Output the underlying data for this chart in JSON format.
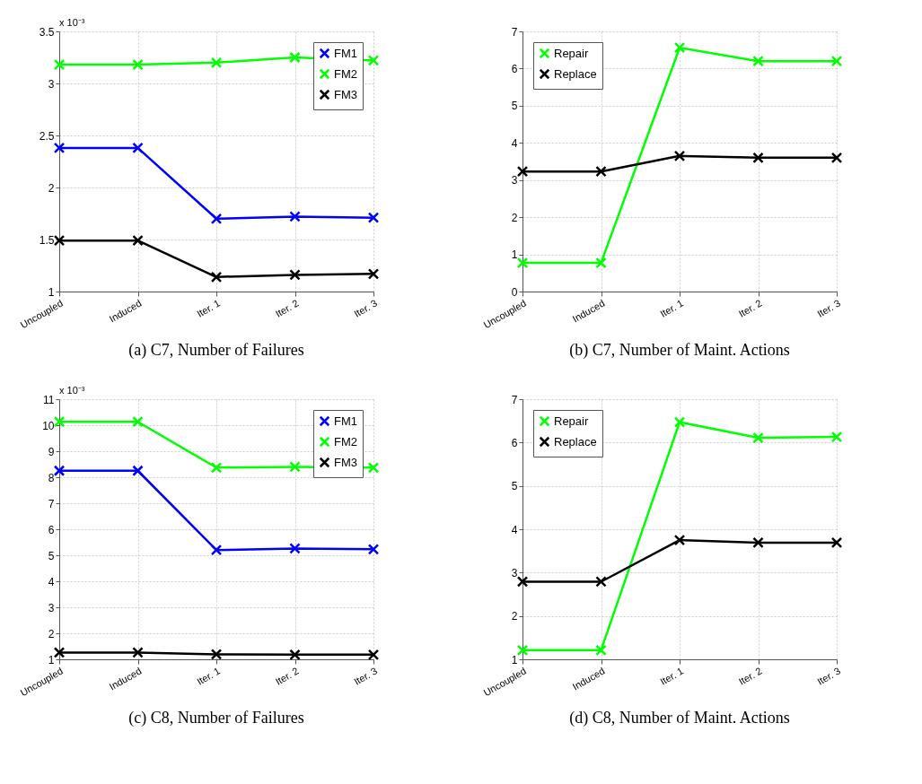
{
  "chart_data": [
    {
      "type": "line",
      "title": "(a) C7, Number of Failures",
      "annotations": [
        "x 10⁻³"
      ],
      "categories": [
        "Uncoupled",
        "Induced",
        "Iter. 1",
        "Iter. 2",
        "Iter. 3"
      ],
      "ylim": [
        1,
        3.5
      ],
      "yticks": [
        1,
        1.5,
        2,
        2.5,
        3,
        3.5
      ],
      "grid": true,
      "legend": "top right",
      "marker": "cross",
      "line_style": "solid",
      "series": [
        {
          "name": "FM1",
          "color": "#0000ff",
          "values": [
            2.38,
            2.38,
            1.7,
            1.72,
            1.71
          ]
        },
        {
          "name": "FM2",
          "color": "#00ff00",
          "values": [
            3.18,
            3.18,
            3.2,
            3.25,
            3.22
          ]
        },
        {
          "name": "FM3",
          "color": "#000000",
          "values": [
            1.49,
            1.49,
            1.14,
            1.16,
            1.17
          ]
        }
      ]
    },
    {
      "type": "line",
      "title": "(b) C7, Number of Maint. Actions",
      "categories": [
        "Uncoupled",
        "Induced",
        "Iter. 1",
        "Iter. 2",
        "Iter. 3"
      ],
      "ylim": [
        0,
        7
      ],
      "yticks": [
        0,
        1,
        2,
        3,
        4,
        5,
        6,
        7
      ],
      "grid": true,
      "legend": "top left",
      "marker": "cross",
      "line_style": "solid",
      "series": [
        {
          "name": "Repair",
          "color": "#00ff00",
          "values": [
            0.77,
            0.77,
            6.56,
            6.2,
            6.2
          ]
        },
        {
          "name": "Replace",
          "color": "#000000",
          "values": [
            3.23,
            3.23,
            3.65,
            3.6,
            3.6
          ]
        }
      ]
    },
    {
      "type": "line",
      "title": "(c) C8, Number of Failures",
      "annotations": [
        "x 10⁻³"
      ],
      "categories": [
        "Uncoupled",
        "Induced",
        "Iter. 1",
        "Iter. 2",
        "Iter. 3"
      ],
      "ylim": [
        1,
        11
      ],
      "yticks": [
        1,
        2,
        3,
        4,
        5,
        6,
        7,
        8,
        9,
        10,
        11
      ],
      "grid": true,
      "legend": "top right",
      "marker": "cross",
      "line_style": "solid",
      "series": [
        {
          "name": "FM1",
          "color": "#0000ff",
          "values": [
            8.25,
            8.25,
            5.2,
            5.26,
            5.23
          ]
        },
        {
          "name": "FM2",
          "color": "#00ff00",
          "values": [
            10.13,
            10.13,
            8.37,
            8.4,
            8.37
          ]
        },
        {
          "name": "FM3",
          "color": "#000000",
          "values": [
            1.26,
            1.26,
            1.19,
            1.18,
            1.18
          ]
        }
      ]
    },
    {
      "type": "line",
      "title": "(d) C8, Number of Maint. Actions",
      "categories": [
        "Uncoupled",
        "Induced",
        "Iter. 1",
        "Iter. 2",
        "Iter. 3"
      ],
      "ylim": [
        1,
        7
      ],
      "yticks": [
        1,
        2,
        3,
        4,
        5,
        6,
        7
      ],
      "grid": true,
      "legend": "top left",
      "marker": "cross",
      "line_style": "solid",
      "series": [
        {
          "name": "Repair",
          "color": "#00ff00",
          "values": [
            1.21,
            1.21,
            6.47,
            6.11,
            6.13
          ]
        },
        {
          "name": "Replace",
          "color": "#000000",
          "values": [
            2.79,
            2.79,
            3.75,
            3.69,
            3.69
          ]
        }
      ]
    }
  ]
}
